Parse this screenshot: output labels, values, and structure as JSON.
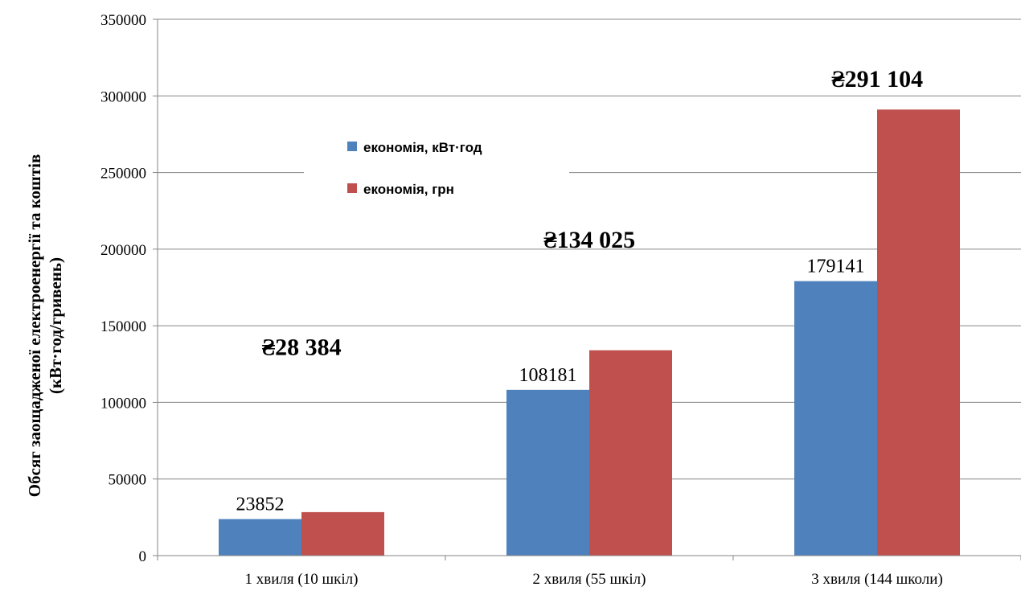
{
  "chart_data": {
    "type": "bar",
    "categories": [
      "1 хвиля (10 шкіл)",
      "2 хвиля (55 шкіл)",
      "3 хвиля (144 школи)"
    ],
    "series": [
      {
        "name": "економія, кВт·год",
        "values": [
          23852,
          108181,
          179141
        ],
        "color": "#4f81bd"
      },
      {
        "name": "економія, грн",
        "values": [
          28384,
          134025,
          291104
        ],
        "color": "#c0504d"
      }
    ],
    "data_labels": [
      "23852",
      "108181",
      "179141"
    ],
    "money_labels": [
      "₴28 384",
      "₴134 025",
      "₴291 104"
    ],
    "ylabel": [
      "Обсяг заощадженої електроенергії та коштів",
      "(кВт·год/гривень)"
    ],
    "ylim": [
      0,
      350000
    ],
    "yticks": [
      0,
      50000,
      100000,
      150000,
      200000,
      250000,
      300000,
      350000
    ],
    "grid": true,
    "legend": "upper-left inside plot"
  }
}
